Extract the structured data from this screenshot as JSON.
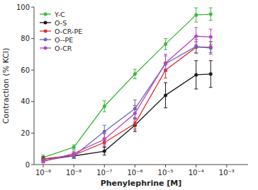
{
  "chart_data": {
    "type": "line",
    "xlabel": "Phenylephrine [M]",
    "ylabel": "Contraction (% KCl)",
    "log": "x",
    "xlim": [
      5e-10,
      0.005
    ],
    "ylim": [
      0,
      100
    ],
    "xticks": [
      {
        "value": 1e-09,
        "label": "10⁻⁹"
      },
      {
        "value": 1e-08,
        "label": "10⁻⁸"
      },
      {
        "value": 1e-07,
        "label": "10⁻⁷"
      },
      {
        "value": 1e-06,
        "label": "10⁻⁶"
      },
      {
        "value": 1e-05,
        "label": "10⁻⁵"
      },
      {
        "value": 0.0001,
        "label": "10⁻⁴"
      },
      {
        "value": 0.001,
        "label": "10⁻³"
      }
    ],
    "yticks": [
      0,
      20,
      40,
      60,
      80,
      100
    ],
    "grid": false,
    "legend": "upper left",
    "marker": "circle",
    "x": [
      1e-09,
      1e-08,
      1e-07,
      1e-06,
      1e-05,
      0.0001,
      0.0003
    ],
    "series": [
      {
        "name": "Y-C",
        "color": "#3db83d",
        "values": [
          4.5,
          11.0,
          37.0,
          57.5,
          76.5,
          95.0,
          95.5
        ],
        "errors": [
          1.5,
          1.5,
          3.5,
          3.0,
          3.5,
          4.5,
          4.0
        ]
      },
      {
        "name": "O-S",
        "color": "#1a1a1a",
        "values": [
          3.5,
          5.5,
          8.5,
          25.0,
          44.0,
          57.0,
          57.5
        ],
        "errors": [
          1.5,
          1.5,
          2.5,
          4.0,
          8.0,
          9.0,
          8.5
        ]
      },
      {
        "name": "O-CR-PE",
        "color": "#d93030",
        "values": [
          3.5,
          6.0,
          14.0,
          26.0,
          60.0,
          74.5,
          74.5
        ],
        "errors": [
          1.0,
          1.5,
          2.5,
          3.5,
          5.0,
          3.5,
          3.5
        ]
      },
      {
        "name": "O--PE",
        "color": "#6666bb",
        "values": [
          2.5,
          5.5,
          21.0,
          35.5,
          64.0,
          75.0,
          74.0
        ],
        "errors": [
          1.0,
          1.5,
          4.0,
          5.5,
          5.0,
          4.5,
          4.0
        ]
      },
      {
        "name": "O-CR",
        "color": "#bb44bb",
        "values": [
          2.0,
          7.0,
          16.0,
          32.5,
          64.5,
          81.5,
          81.0
        ],
        "errors": [
          1.0,
          1.5,
          3.5,
          5.0,
          5.5,
          5.5,
          5.0
        ]
      }
    ]
  }
}
